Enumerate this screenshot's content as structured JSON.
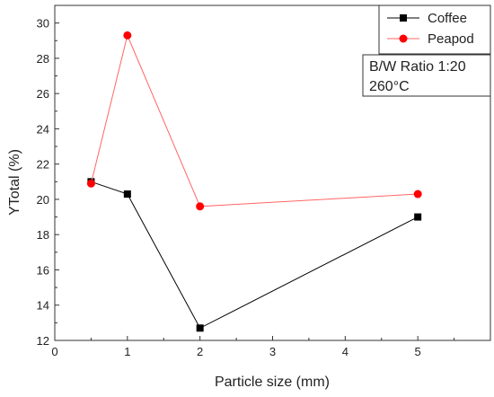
{
  "chart_data": {
    "type": "line",
    "xlabel": "Particle size (mm)",
    "ylabel": "YTotal (%)",
    "xlim": [
      0,
      6
    ],
    "ylim": [
      12,
      31
    ],
    "xticks": [
      0,
      1,
      2,
      3,
      4,
      5
    ],
    "yticks": [
      12,
      14,
      16,
      18,
      20,
      22,
      24,
      26,
      28,
      30
    ],
    "grid": false,
    "legend_position": "top-right",
    "series": [
      {
        "name": "Coffee",
        "marker": "square",
        "color": "#000000",
        "x": [
          0.5,
          1,
          2,
          5
        ],
        "y": [
          21.0,
          20.3,
          12.7,
          19.0
        ]
      },
      {
        "name": "Peapod",
        "marker": "circle",
        "color": "#ff0000",
        "x": [
          0.5,
          1,
          2,
          5
        ],
        "y": [
          20.9,
          29.3,
          19.6,
          20.3
        ]
      }
    ],
    "annotation": {
      "line1": "B/W Ratio 1:20",
      "line2": "260°C"
    }
  }
}
